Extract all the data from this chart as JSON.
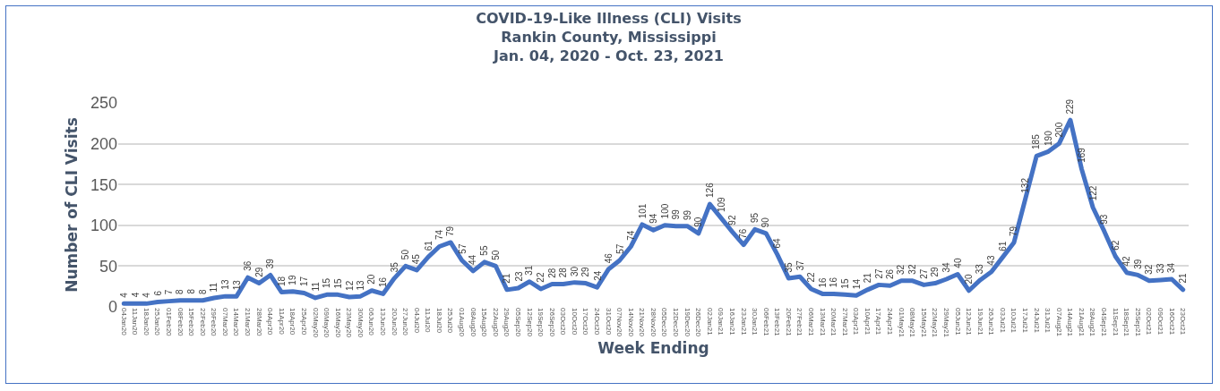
{
  "chart_data": {
    "type": "line",
    "title": "COVID-19-Like Illness (CLI) Visits\nRankin County, Mississippi\nJan. 04, 2020 - Oct. 23, 2021",
    "xlabel": "Week Ending",
    "ylabel": "Number of CLI Visits",
    "categories": [
      "04Jan20",
      "11Jan20",
      "18Jan20",
      "25Jan20",
      "01Feb20",
      "08Feb20",
      "15Feb20",
      "22Feb20",
      "29Feb20",
      "07Mar20",
      "14Mar20",
      "21Mar20",
      "28Mar20",
      "04Apr20",
      "11Apr20",
      "18Apr20",
      "25Apr20",
      "02May20",
      "09May20",
      "16May20",
      "23May20",
      "30May20",
      "06Jun20",
      "13Jun20",
      "20Jun20",
      "27Jun20",
      "04Jul20",
      "11Jul20",
      "18Jul20",
      "25Jul20",
      "01Aug20",
      "08Aug20",
      "15Aug20",
      "22Aug20",
      "29Aug20",
      "05Sep20",
      "12Sep20",
      "19Sep20",
      "26Sep20",
      "03Oct20",
      "10Oct20",
      "17Oct20",
      "24Oct20",
      "31Oct20",
      "07Nov20",
      "14Nov20",
      "21Nov20",
      "28Nov20",
      "05Dec20",
      "12Dec20",
      "19Dec20",
      "26Dec20",
      "02Jan21",
      "09Jan21",
      "16Jan21",
      "23Jan21",
      "30Jan21",
      "06Feb21",
      "13Feb21",
      "20Feb21",
      "27Feb21",
      "06Mar21",
      "13Mar21",
      "20Mar21",
      "27Mar21",
      "03Apr21",
      "10Apr21",
      "17Apr21",
      "24Apr21",
      "01May21",
      "08May21",
      "15May21",
      "22May21",
      "29May21",
      "05Jun21",
      "12Jun21",
      "19Jun21",
      "26Jun21",
      "03Jul21",
      "10Jul21",
      "17Jul21",
      "24Jul21",
      "31Jul21",
      "07Aug21",
      "14Aug21",
      "21Aug21",
      "28Aug21",
      "04Sep21",
      "11Sep21",
      "18Sep21",
      "25Sep21",
      "02Oct21",
      "09Oct21",
      "16Oct21",
      "23Oct21"
    ],
    "series": [
      {
        "color": "#4472c4",
        "values": [
          4,
          4,
          4,
          6,
          7,
          8,
          8,
          8,
          11,
          13,
          13,
          36,
          29,
          39,
          18,
          19,
          17,
          11,
          15,
          15,
          12,
          13,
          20,
          16,
          35,
          50,
          45,
          61,
          74,
          79,
          57,
          44,
          55,
          50,
          21,
          23,
          31,
          22,
          28,
          28,
          30,
          29,
          24,
          46,
          57,
          74,
          101,
          94,
          100,
          99,
          99,
          90,
          126,
          109,
          92,
          76,
          95,
          90,
          64,
          35,
          37,
          22,
          16,
          16,
          15,
          14,
          21,
          27,
          26,
          32,
          32,
          27,
          29,
          34,
          40,
          20,
          33,
          43,
          61,
          79,
          132,
          185,
          190,
          200,
          229,
          169,
          122,
          93,
          62,
          42,
          39,
          32,
          33,
          34,
          21
        ]
      }
    ],
    "ylim": [
      0,
      250
    ],
    "yticks": [
      0,
      50,
      100,
      150,
      200,
      250
    ],
    "grid": "y",
    "data_labels": true,
    "line_style": "solid",
    "marker": "none"
  }
}
